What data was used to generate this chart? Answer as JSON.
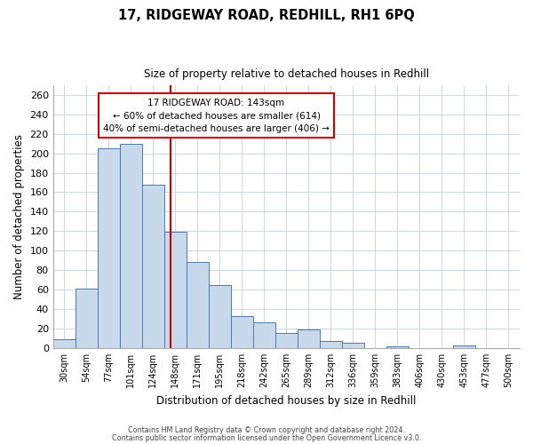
{
  "title": "17, RIDGEWAY ROAD, REDHILL, RH1 6PQ",
  "subtitle": "Size of property relative to detached houses in Redhill",
  "xlabel": "Distribution of detached houses by size in Redhill",
  "ylabel": "Number of detached properties",
  "bin_labels": [
    "30sqm",
    "54sqm",
    "77sqm",
    "101sqm",
    "124sqm",
    "148sqm",
    "171sqm",
    "195sqm",
    "218sqm",
    "242sqm",
    "265sqm",
    "289sqm",
    "312sqm",
    "336sqm",
    "359sqm",
    "383sqm",
    "406sqm",
    "430sqm",
    "453sqm",
    "477sqm",
    "500sqm"
  ],
  "bar_values": [
    9,
    61,
    205,
    210,
    168,
    119,
    88,
    65,
    33,
    26,
    15,
    19,
    7,
    5,
    0,
    2,
    0,
    0,
    3,
    0,
    0
  ],
  "bar_color": "#c9d9ec",
  "bar_edge_color": "#4a7ab5",
  "vline_color": "#cc0000",
  "vline_position": 4.77,
  "annotation_line1": "17 RIDGEWAY ROAD: 143sqm",
  "annotation_line2": "← 60% of detached houses are smaller (614)",
  "annotation_line3": "40% of semi-detached houses are larger (406) →",
  "box_edge_color": "#cc0000",
  "ylim": [
    0,
    270
  ],
  "ytick_step": 20,
  "footer_line1": "Contains HM Land Registry data © Crown copyright and database right 2024.",
  "footer_line2": "Contains public sector information licensed under the Open Government Licence v3.0.",
  "background_color": "#ffffff",
  "grid_color": "#c8d8e8"
}
